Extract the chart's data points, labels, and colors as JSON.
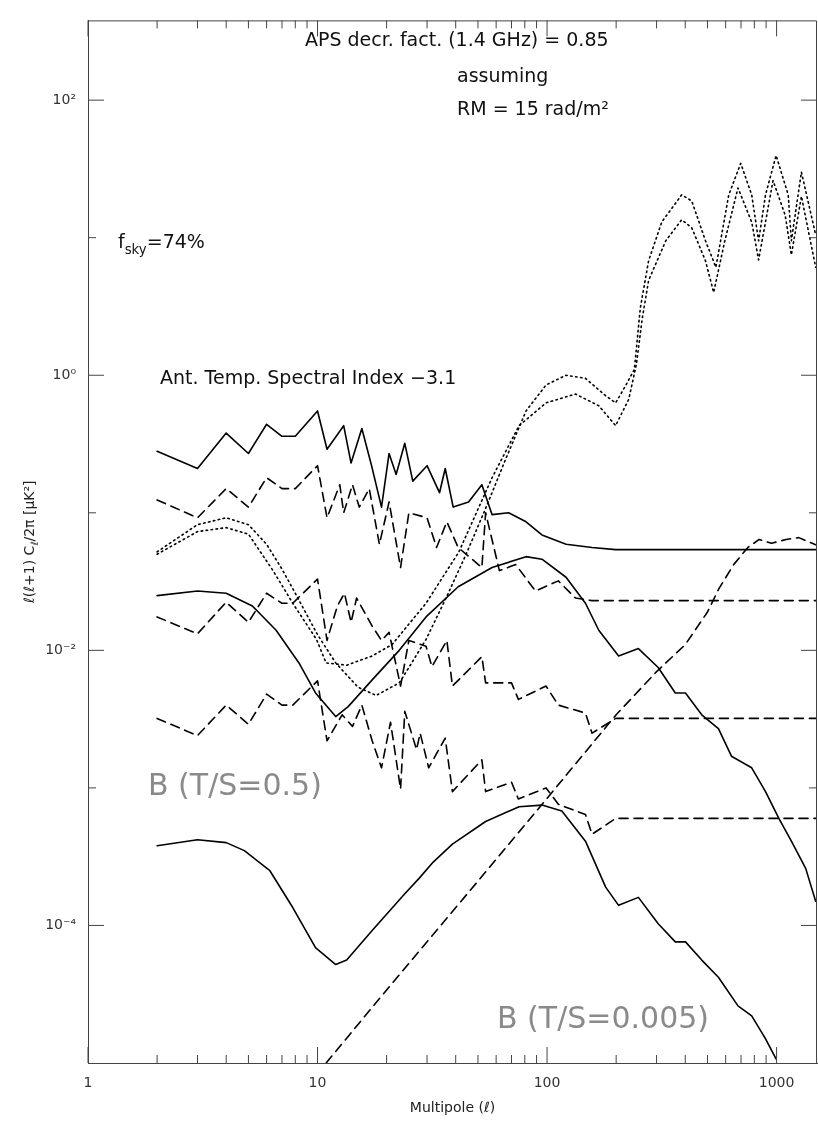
{
  "chart_data": {
    "type": "line",
    "xlabel": "Multipole (ℓ)",
    "ylabel": "ℓ(ℓ+1) C$_{ℓ}$/2π [μK²]",
    "annotations": [
      "APS decr. fact. (1.4 GHz) = 0.85",
      "assuming",
      "RM = 15 rad/m²",
      "f$_{sky}$=74%",
      "Ant. Temp. Spectral Index −3.1"
    ],
    "log": "xy",
    "grid": false,
    "legend": false,
    "marker": "none",
    "xlim": [
      1,
      1500
    ],
    "xticks": [
      1,
      {
        "value": 2,
        "label": null
      },
      {
        "value": 3,
        "label": null
      },
      {
        "value": 4,
        "label": null
      },
      {
        "value": 5,
        "label": null
      },
      {
        "value": 6,
        "label": null
      },
      {
        "value": 7,
        "label": null
      },
      {
        "value": 8,
        "label": null
      },
      {
        "value": 9,
        "label": null
      },
      10,
      {
        "value": 20,
        "label": null
      },
      {
        "value": 30,
        "label": null
      },
      {
        "value": 40,
        "label": null
      },
      {
        "value": 50,
        "label": null
      },
      {
        "value": 60,
        "label": null
      },
      {
        "value": 70,
        "label": null
      },
      {
        "value": 80,
        "label": null
      },
      {
        "value": 90,
        "label": null
      },
      100,
      {
        "value": 200,
        "label": null
      },
      {
        "value": 300,
        "label": null
      },
      {
        "value": 400,
        "label": null
      },
      {
        "value": 500,
        "label": null
      },
      {
        "value": 600,
        "label": null
      },
      {
        "value": 700,
        "label": null
      },
      {
        "value": 800,
        "label": null
      },
      {
        "value": 900,
        "label": null
      },
      1000
    ],
    "ylim": [
      1e-05,
      380
    ],
    "yticks": [
      {
        "value": 0.0001,
        "label": "10⁻⁴"
      },
      {
        "value": 0.001,
        "label": null
      },
      {
        "value": 0.01,
        "label": "10⁻²"
      },
      {
        "value": 0.1,
        "label": null
      },
      {
        "value": 1,
        "label": "10⁰"
      },
      {
        "value": 10,
        "label": null
      },
      {
        "value": 100,
        "label": "10²"
      }
    ],
    "series": [
      {
        "line_style": "dotted",
        "color": "#000000",
        "x": [
          2,
          3,
          4,
          5,
          6,
          7,
          8,
          10,
          12,
          15,
          18,
          22.7,
          25,
          29.7,
          36.3,
          44.4,
          54.3,
          66.3,
          81,
          99,
          121,
          147,
          180,
          199,
          219,
          240,
          255,
          277,
          316,
          386,
          427,
          490,
          544,
          619,
          698,
          779,
          835,
          895,
          995,
          1124,
          1160,
          1283,
          1480
        ],
        "values": [
          0.052,
          0.082,
          0.092,
          0.082,
          0.059,
          0.039,
          0.026,
          0.013,
          0.0081,
          0.0054,
          0.0047,
          0.0058,
          0.0075,
          0.012,
          0.024,
          0.05,
          0.11,
          0.25,
          0.55,
          0.85,
          1.0,
          0.95,
          0.71,
          0.63,
          0.83,
          1.1,
          3.1,
          6.8,
          13,
          20.5,
          18.5,
          9.5,
          6.1,
          20.5,
          34.7,
          20.5,
          9.5,
          20.5,
          39.6,
          20.5,
          9.5,
          30,
          10.5
        ]
      },
      {
        "line_style": "dotted",
        "color": "#000000",
        "x": [
          2,
          3,
          4,
          5,
          6.4,
          7.8,
          9.9,
          10.9,
          13.4,
          17.3,
          21.1,
          29.7,
          41.3,
          57.6,
          75.5,
          99,
          133,
          168,
          199,
          227,
          245,
          260,
          277,
          329,
          386,
          427,
          490,
          532,
          595,
          679,
          779,
          835,
          965,
          1090,
          1160,
          1283,
          1480
        ],
        "values": [
          0.05,
          0.073,
          0.078,
          0.07,
          0.038,
          0.022,
          0.012,
          0.0081,
          0.0078,
          0.0091,
          0.011,
          0.022,
          0.052,
          0.18,
          0.43,
          0.63,
          0.73,
          0.6,
          0.43,
          0.67,
          1.2,
          2.6,
          4.9,
          9.5,
          13.5,
          11.8,
          6.8,
          4.0,
          9.5,
          23,
          13,
          6.9,
          26,
          14.6,
          7.5,
          20,
          6.1
        ]
      },
      {
        "line_style": "solid",
        "color": "#000000",
        "x": [
          2,
          3,
          4,
          5,
          6,
          7,
          8,
          10,
          11,
          13,
          14,
          15.6,
          17.2,
          19,
          20.5,
          22,
          24,
          26,
          30,
          34,
          36,
          39,
          45.5,
          52,
          57.6,
          68,
          81,
          95,
          121,
          157,
          199,
          1500
        ],
        "values": [
          0.28,
          0.21,
          0.38,
          0.27,
          0.44,
          0.36,
          0.36,
          0.55,
          0.29,
          0.43,
          0.23,
          0.41,
          0.22,
          0.11,
          0.27,
          0.19,
          0.32,
          0.17,
          0.22,
          0.14,
          0.21,
          0.11,
          0.12,
          0.16,
          0.097,
          0.1,
          0.086,
          0.069,
          0.059,
          0.056,
          0.054,
          0.054
        ]
      },
      {
        "line_style": "dashed",
        "color": "#000000",
        "x": [
          2,
          3,
          4,
          5,
          6,
          7,
          8,
          10,
          11,
          12.5,
          13,
          14.2,
          15.2,
          16.8,
          18.6,
          20.5,
          23,
          25,
          30,
          33,
          36.6,
          41,
          52,
          54,
          62,
          73,
          89,
          112,
          133,
          157,
          199,
          1500
        ],
        "values": [
          0.124,
          0.092,
          0.15,
          0.11,
          0.18,
          0.15,
          0.15,
          0.22,
          0.092,
          0.16,
          0.1,
          0.16,
          0.11,
          0.15,
          0.059,
          0.12,
          0.04,
          0.1,
          0.092,
          0.056,
          0.086,
          0.056,
          0.04,
          0.1,
          0.038,
          0.042,
          0.027,
          0.032,
          0.024,
          0.023,
          0.023,
          0.023
        ]
      },
      {
        "line_style": "dashed",
        "color": "#000000",
        "x": [
          2,
          3,
          4,
          5,
          6,
          7,
          7.8,
          10,
          11,
          12.2,
          13.1,
          14,
          14.8,
          17.3,
          19,
          20.5,
          23,
          25,
          29.7,
          31.5,
          36.6,
          38.7,
          52,
          54,
          70,
          75,
          99,
          112,
          147,
          157,
          199,
          1500
        ],
        "values": [
          0.0175,
          0.0132,
          0.0224,
          0.016,
          0.026,
          0.022,
          0.022,
          0.033,
          0.0118,
          0.021,
          0.026,
          0.016,
          0.024,
          0.015,
          0.0118,
          0.0135,
          0.0055,
          0.0118,
          0.0107,
          0.0076,
          0.0118,
          0.0055,
          0.009,
          0.0058,
          0.0058,
          0.0044,
          0.0055,
          0.004,
          0.0035,
          0.0025,
          0.0032,
          0.0032
        ]
      },
      {
        "line_style": "dashed",
        "color": "#000000",
        "x": [
          2,
          3,
          4,
          5,
          6,
          7,
          7.8,
          10,
          11,
          12.8,
          14.2,
          15.6,
          17.3,
          19,
          20.8,
          23,
          24,
          27,
          28,
          30.5,
          36,
          38.7,
          52,
          54,
          70,
          75,
          99,
          112,
          147,
          157,
          199,
          1500
        ],
        "values": [
          0.0032,
          0.0024,
          0.004,
          0.0029,
          0.0048,
          0.004,
          0.004,
          0.006,
          0.0022,
          0.0034,
          0.0028,
          0.004,
          0.0022,
          0.0014,
          0.003,
          0.00098,
          0.0036,
          0.0019,
          0.0025,
          0.0014,
          0.0023,
          0.00094,
          0.0016,
          0.00094,
          0.0011,
          0.00083,
          0.001,
          0.00076,
          0.00064,
          0.00046,
          0.0006,
          0.0006
        ]
      },
      {
        "name": "B (T/S=0.5)",
        "line_style": "solid",
        "color": "#000000",
        "x": [
          2,
          3,
          4,
          5.2,
          6.6,
          8.3,
          9.8,
          12,
          13.6,
          17.3,
          22.7,
          29.7,
          41,
          57.6,
          81,
          95,
          121,
          147,
          168,
          205,
          250,
          305,
          362,
          401,
          472,
          558,
          636,
          779,
          895,
          1023,
          1160,
          1339,
          1480
        ],
        "values": [
          0.025,
          0.027,
          0.026,
          0.021,
          0.014,
          0.0081,
          0.0049,
          0.0033,
          0.0039,
          0.0061,
          0.01,
          0.0175,
          0.029,
          0.04,
          0.048,
          0.046,
          0.034,
          0.022,
          0.014,
          0.0091,
          0.0103,
          0.0075,
          0.0049,
          0.0049,
          0.0034,
          0.0027,
          0.0017,
          0.0014,
          0.00094,
          0.0006,
          0.00041,
          0.00026,
          0.00015
        ]
      },
      {
        "name": "B (T/S=0.005)",
        "line_style": "solid",
        "color": "#000000",
        "x": [
          2,
          3,
          4,
          4.8,
          6.2,
          7.8,
          9.8,
          12,
          13.4,
          17.3,
          24,
          27.7,
          32,
          38.7,
          54,
          75.5,
          95,
          116,
          147,
          180,
          205,
          250,
          305,
          362,
          401,
          472,
          558,
          679,
          779,
          895,
          995
        ],
        "values": [
          0.00038,
          0.00042,
          0.0004,
          0.00035,
          0.00025,
          0.000135,
          6.9e-05,
          5.2e-05,
          5.6e-05,
          9.2e-05,
          0.00017,
          0.00022,
          0.00029,
          0.00039,
          0.00057,
          0.00073,
          0.00075,
          0.00068,
          0.00041,
          0.00019,
          0.00014,
          0.00016,
          0.000103,
          7.6e-05,
          7.6e-05,
          5.6e-05,
          4.2e-05,
          2.6e-05,
          2.2e-05,
          1.5e-05,
          1.07e-05
        ]
      },
      {
        "line_style": "dashed",
        "color": "#000000",
        "x": [
          10.9,
          20,
          30,
          50,
          100,
          200,
          300,
          400,
          500,
          560,
          650,
          750,
          840,
          950,
          1100,
          1250,
          1500
        ],
        "values": [
          1e-05,
          3.4e-05,
          7.6e-05,
          0.00021,
          0.00084,
          0.0034,
          0.007,
          0.011,
          0.019,
          0.028,
          0.042,
          0.056,
          0.064,
          0.06,
          0.064,
          0.066,
          0.058
        ]
      }
    ]
  }
}
